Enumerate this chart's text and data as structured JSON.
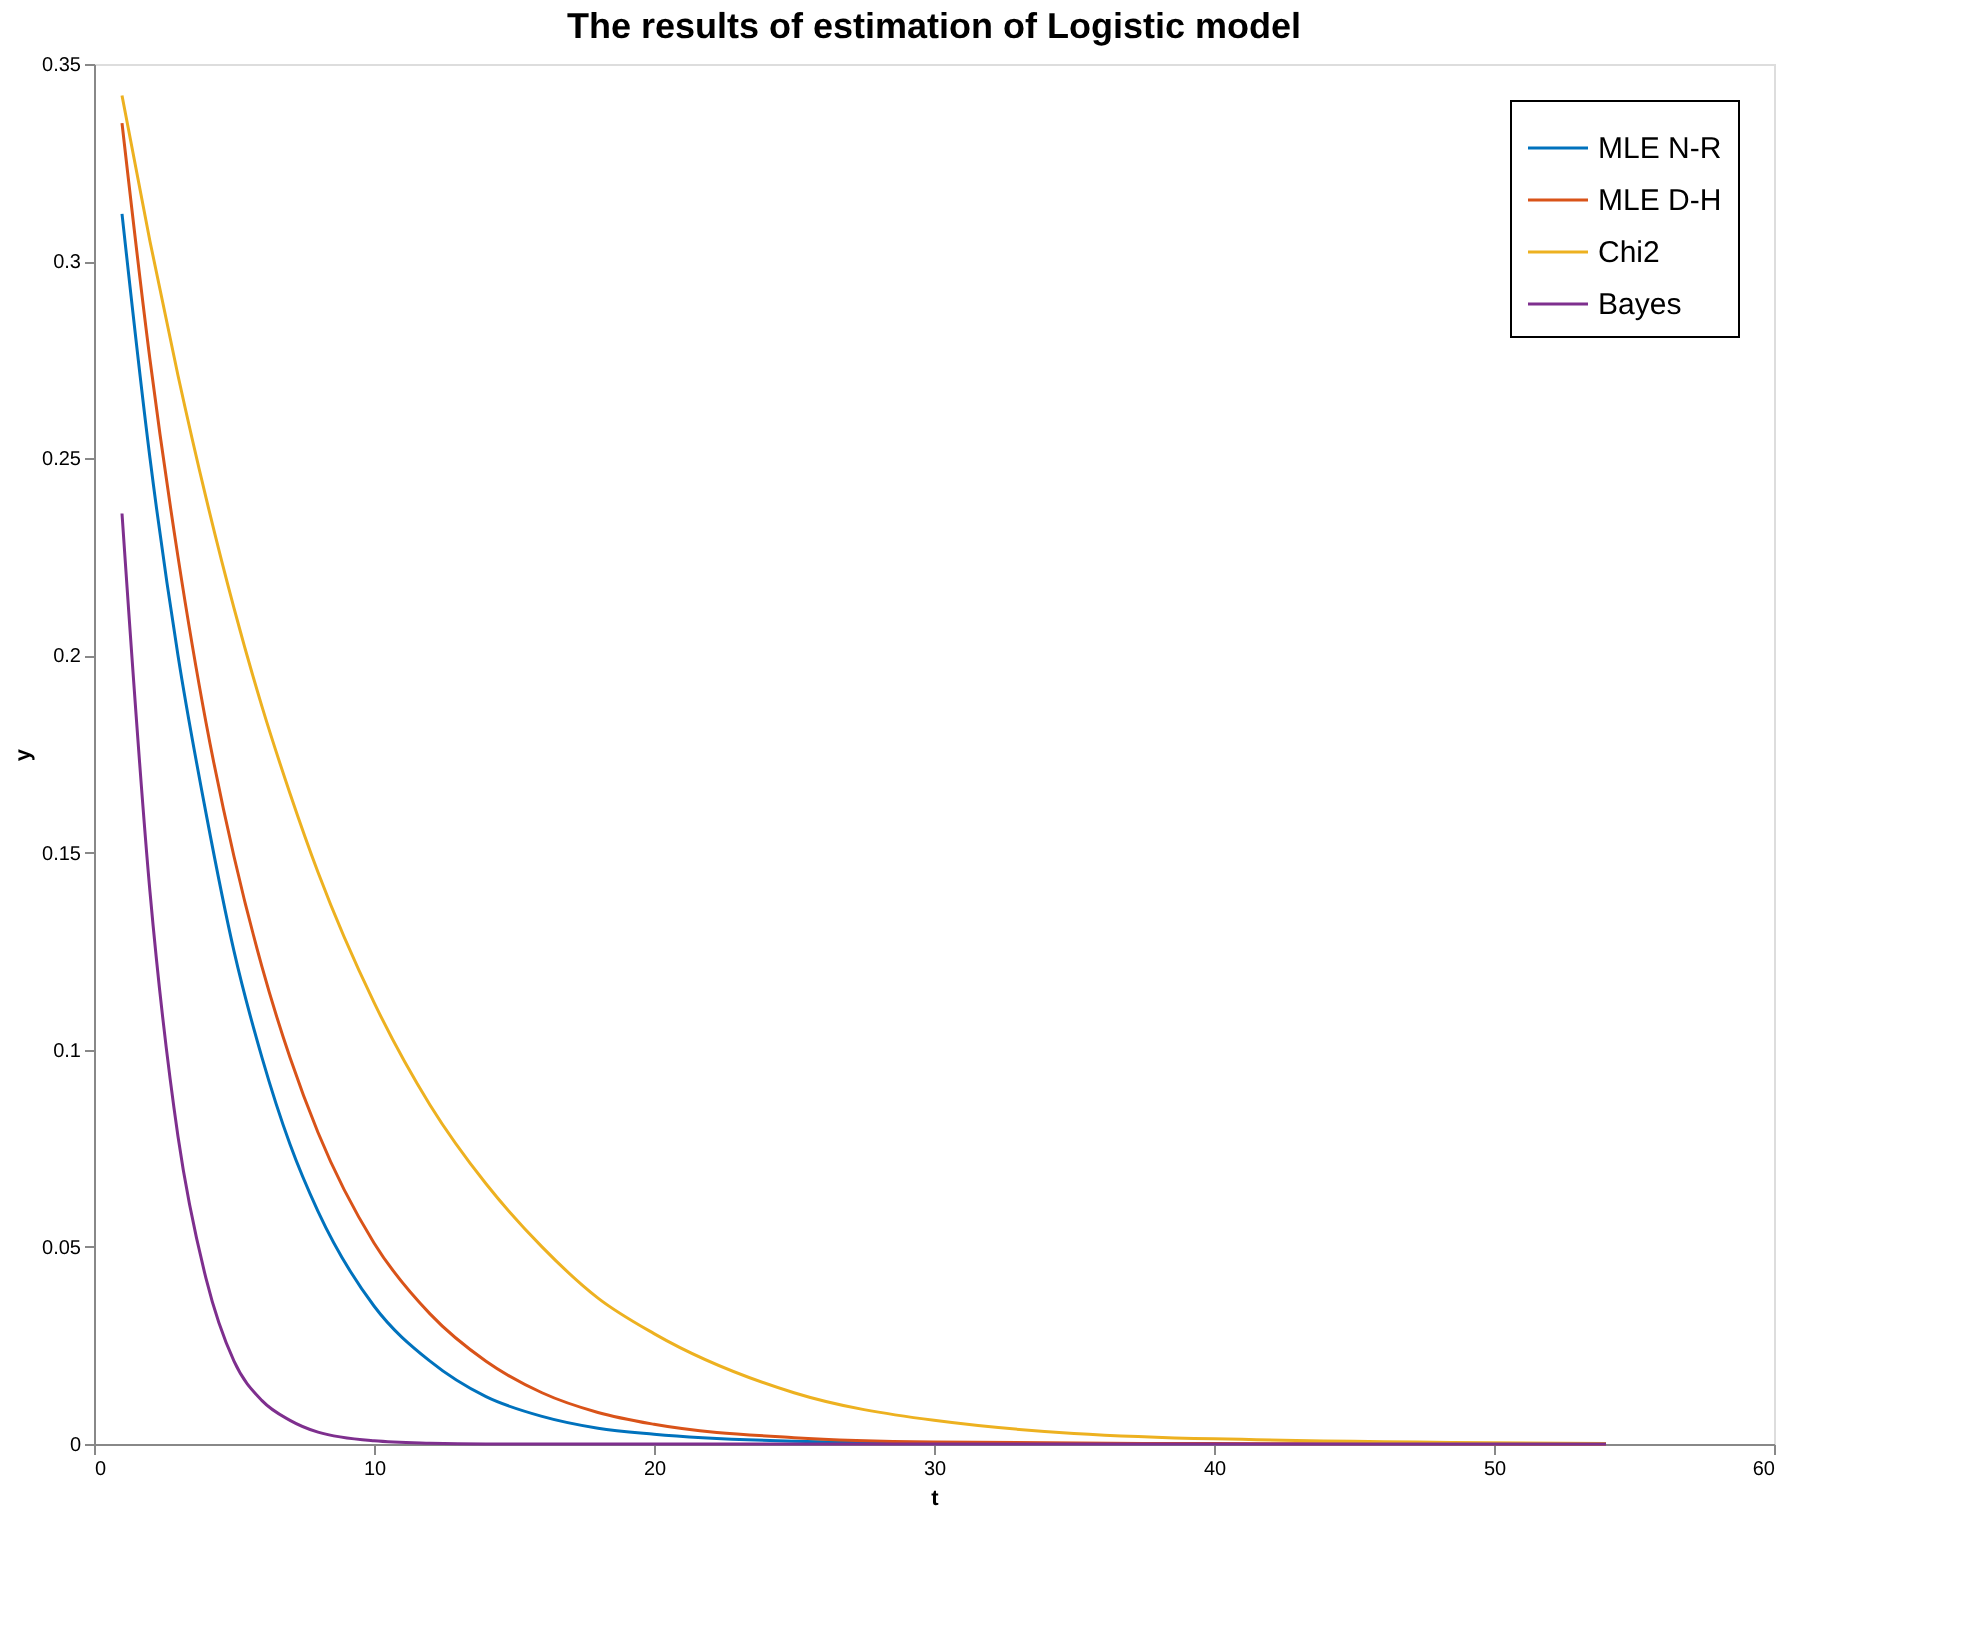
{
  "chart_data": {
    "type": "line",
    "title": "The results of estimation of Logistic model",
    "xlabel": "t",
    "ylabel": "y",
    "x": [
      1,
      2,
      3,
      4,
      5,
      6,
      7,
      8,
      10,
      12,
      14,
      16,
      18,
      20,
      25,
      30,
      40,
      54
    ],
    "series": [
      {
        "name": "MLE N-R",
        "color": "#0072bd",
        "values": [
          0.312,
          0.25,
          0.2,
          0.16,
          0.125,
          0.098,
          0.076,
          0.059,
          0.035,
          0.021,
          0.012,
          0.007,
          0.004,
          0.0025,
          0.0007,
          0.0002,
          null,
          null
        ]
      },
      {
        "name": "MLE D-H",
        "color": "#d95319",
        "values": [
          0.335,
          0.275,
          0.225,
          0.183,
          0.149,
          0.121,
          0.098,
          0.079,
          0.051,
          0.033,
          0.021,
          0.013,
          0.008,
          0.005,
          0.0016,
          0.0005,
          0.0001,
          0
        ]
      },
      {
        "name": "Chi2",
        "color": "#edb120",
        "values": [
          0.342,
          0.305,
          0.271,
          0.24,
          0.212,
          0.187,
          0.165,
          0.145,
          0.112,
          0.086,
          0.066,
          0.05,
          0.037,
          0.028,
          0.013,
          0.006,
          0.0013,
          0.0001
        ]
      },
      {
        "name": "Bayes",
        "color": "#7e2f8e",
        "values": [
          0.236,
          0.14,
          0.078,
          0.042,
          0.021,
          0.011,
          0.006,
          0.003,
          0.0008,
          0.0002,
          0,
          0,
          0,
          0,
          0,
          0,
          0,
          0
        ]
      }
    ],
    "xlim": [
      0,
      60
    ],
    "xticks": [
      0,
      10,
      20,
      30,
      40,
      50,
      60
    ],
    "ylim": [
      0,
      0.35
    ],
    "yticks": [
      0,
      0.05,
      0.1,
      0.15,
      0.2,
      0.25,
      0.3,
      0.35
    ],
    "grid": false,
    "legend": "top right",
    "line_style": "solid",
    "marker": "none"
  }
}
